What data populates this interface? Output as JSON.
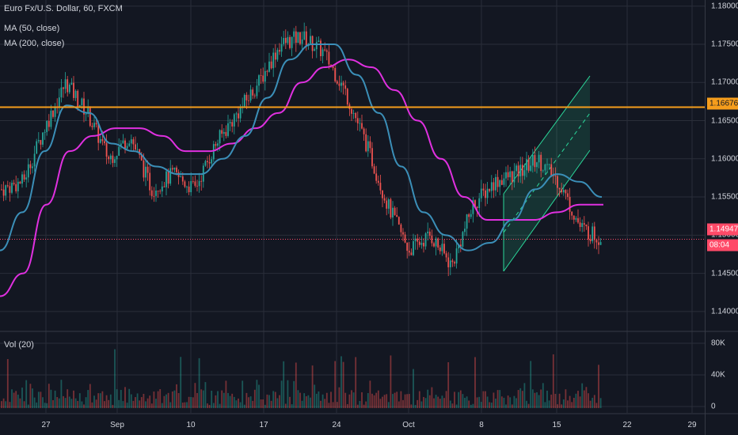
{
  "legend": {
    "symbol": "Euro Fx/U.S. Dollar, 60, FXCM",
    "ma50": "MA (50, close)",
    "ma200": "MA (200, close)",
    "vol": "Vol (20)"
  },
  "colors": {
    "background": "#131722",
    "grid": "#2a2e39",
    "up": "#26a69a",
    "down": "#ef5350",
    "ma50": "#3b8fb8",
    "ma200": "#e030e0",
    "horizontal_line": "#f59d1c",
    "price_line": "#ff4a68",
    "channel": "#2bd99b"
  },
  "price_axis": {
    "ticks": [
      "1.18000",
      "1.17500",
      "1.17000",
      "1.16500",
      "1.16000",
      "1.15500",
      "1.15000",
      "1.14500",
      "1.14000"
    ],
    "horizontal_line_label": "1.16676",
    "last_price_label": "1.14947",
    "countdown_label": "08:04"
  },
  "volume_axis": {
    "ticks": [
      "80K",
      "40K",
      "0"
    ]
  },
  "time_axis": {
    "ticks": [
      "27",
      "Sep",
      "10",
      "17",
      "24",
      "Oct",
      "8",
      "15",
      "22",
      "29"
    ]
  },
  "chart_data": {
    "type": "candlestick",
    "symbol": "EURUSD",
    "timeframe": "60",
    "ylim": [
      1.1375,
      1.1808
    ],
    "grid": true,
    "horizontal_line": 1.16676,
    "last_price": 1.14947,
    "close_path_x": [
      "Aug 22",
      "Aug 24",
      "Aug 27",
      "Aug 29",
      "Aug 31",
      "Sep 3",
      "Sep 5",
      "Sep 7",
      "Sep 10",
      "Sep 12",
      "Sep 14",
      "Sep 17",
      "Sep 19",
      "Sep 21",
      "Sep 24",
      "Sep 26",
      "Sep 28",
      "Oct 1",
      "Oct 3",
      "Oct 5",
      "Oct 8",
      "Oct 9",
      "Oct 11",
      "Oct 12",
      "Oct 15",
      "Oct 16",
      "Oct 17",
      "Oct 18",
      "Oct 19"
    ],
    "close_path_y": [
      1.156,
      1.157,
      1.164,
      1.17,
      1.166,
      1.16,
      1.163,
      1.156,
      1.158,
      1.156,
      1.162,
      1.166,
      1.17,
      1.175,
      1.176,
      1.174,
      1.169,
      1.162,
      1.154,
      1.148,
      1.15,
      1.146,
      1.154,
      1.157,
      1.158,
      1.16,
      1.157,
      1.151,
      1.1495
    ],
    "ma50_values": [
      1.148,
      1.153,
      1.161,
      1.167,
      1.166,
      1.162,
      1.161,
      1.159,
      1.158,
      1.158,
      1.16,
      1.163,
      1.168,
      1.173,
      1.175,
      1.175,
      1.171,
      1.166,
      1.159,
      1.153,
      1.15,
      1.148,
      1.149,
      1.152,
      1.156,
      1.158,
      1.157,
      1.155
    ],
    "ma200_values": [
      1.142,
      1.145,
      1.154,
      1.161,
      1.163,
      1.164,
      1.164,
      1.163,
      1.161,
      1.161,
      1.162,
      1.164,
      1.166,
      1.17,
      1.172,
      1.173,
      1.172,
      1.169,
      1.165,
      1.16,
      1.155,
      1.152,
      1.152,
      1.152,
      1.153,
      1.154,
      1.154
    ],
    "volume_ylim": [
      0,
      80000
    ]
  }
}
